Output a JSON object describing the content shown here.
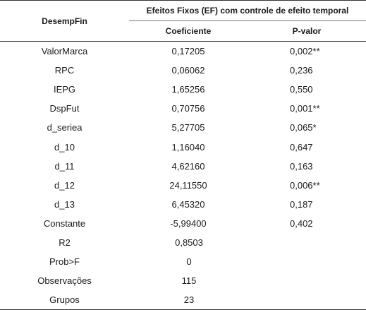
{
  "header": {
    "row_label": "DesempFin",
    "group_label": "Efeitos Fixos (EF) com controle de efeito temporal",
    "col_coef": "Coeficiente",
    "col_pvalor": "P-valor"
  },
  "rows": [
    {
      "label": "ValorMarca",
      "coef": "0,17205",
      "pvalor": "0,002**"
    },
    {
      "label": "RPC",
      "coef": "0,06062",
      "pvalor": "0,236"
    },
    {
      "label": "IEPG",
      "coef": "1,65256",
      "pvalor": "0,550"
    },
    {
      "label": "DspFut",
      "coef": "0,70756",
      "pvalor": "0,001**"
    },
    {
      "label": "d_seriea",
      "coef": "5,27705",
      "pvalor": "0,065*"
    },
    {
      "label": "d_10",
      "coef": "1,16040",
      "pvalor": "0,647"
    },
    {
      "label": "d_11",
      "coef": "4,62160",
      "pvalor": "0,163"
    },
    {
      "label": "d_12",
      "coef": "24,11550",
      "pvalor": "0,006**"
    },
    {
      "label": "d_13",
      "coef": "6,45320",
      "pvalor": "0,187"
    },
    {
      "label": "Constante",
      "coef": "-5,99400",
      "pvalor": "0,402"
    }
  ],
  "stats": [
    {
      "label": "R2",
      "value": "0,8503"
    },
    {
      "label": "Prob>F",
      "value": "0"
    },
    {
      "label": "Observações",
      "value": "115"
    },
    {
      "label": "Grupos",
      "value": "23"
    }
  ]
}
